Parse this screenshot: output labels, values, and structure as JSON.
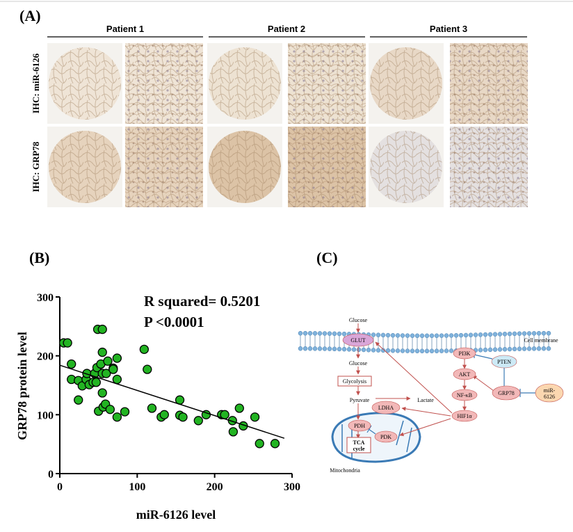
{
  "panel_a": {
    "label": "(A)",
    "patients": [
      "Patient 1",
      "Patient 2",
      "Patient 3"
    ],
    "rows": [
      "IHC: miR-6126",
      "IHC: GRP78"
    ]
  },
  "chart_data": {
    "type": "scatter",
    "label": "(B)",
    "x_label": "miR-6126 level",
    "y_label": "GRP78 protein level",
    "annotations": [
      "R squared= 0.5201",
      "P <0.0001"
    ],
    "x": [
      5,
      10,
      15,
      15,
      24,
      24,
      29,
      34,
      35,
      38,
      43,
      45,
      47,
      48,
      49,
      55,
      50,
      53,
      55,
      55,
      55,
      56,
      59,
      62,
      60,
      65,
      69,
      69,
      74,
      74,
      74,
      84,
      109,
      113,
      119,
      131,
      135,
      155,
      155,
      159,
      179,
      189,
      209,
      213,
      223,
      224,
      232,
      237,
      252,
      258,
      278
    ],
    "values": [
      222,
      222,
      186,
      160,
      158,
      125,
      149,
      160,
      170,
      151,
      155,
      170,
      155,
      180,
      245,
      245,
      106,
      186,
      206,
      170,
      137,
      113,
      118,
      191,
      170,
      109,
      179,
      177,
      196,
      160,
      96,
      105,
      211,
      177,
      111,
      96,
      100,
      125,
      99,
      96,
      90,
      100,
      100,
      100,
      90,
      71,
      111,
      81,
      96,
      51,
      51
    ],
    "color": "#22b422",
    "trend_line": {
      "x": [
        0,
        290
      ],
      "y": [
        184,
        60
      ]
    },
    "xlim": [
      0,
      300
    ],
    "ylim": [
      0,
      300
    ],
    "xticks": [
      0,
      100,
      200,
      300
    ],
    "yticks": [
      0,
      100,
      200,
      300
    ]
  },
  "panel_c": {
    "label": "(C)",
    "nodes": [
      "Glucose",
      "GLUT",
      "Cell membrane",
      "Glucose",
      "Glycolysis",
      "Pyruvate",
      "Lactate",
      "LDHA",
      "PDH",
      "TCA cycle",
      "PDK",
      "Mitochondria",
      "PI3K",
      "PTEN",
      "AKT",
      "NF-κB",
      "HIF1α",
      "GRP78",
      "miR-6126"
    ]
  }
}
